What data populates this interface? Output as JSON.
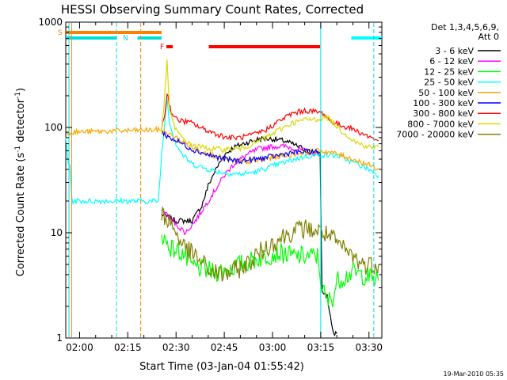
{
  "chart_data": {
    "type": "line",
    "title": "HESSI Observing Summary Count Rates, Corrected",
    "xlabel": "Start Time (03-Jan-04 01:55:42)",
    "ylabel_main": "Corrected Count Rate (s",
    "ylabel_sup1": "-1",
    "ylabel_mid": " detector",
    "ylabel_sup2": "-1",
    "ylabel_end": ")",
    "yscale": "log",
    "ylim": [
      1,
      1000
    ],
    "xlim_min": [
      115.7,
      214.0
    ],
    "y_ticks": [
      {
        "value": 1,
        "label": "1"
      },
      {
        "value": 10,
        "label": "10"
      },
      {
        "value": 100,
        "label": "100"
      },
      {
        "value": 1000,
        "label": "1000"
      }
    ],
    "x_ticks": [
      {
        "value": 120,
        "label": "02:00"
      },
      {
        "value": 135,
        "label": "02:15"
      },
      {
        "value": 150,
        "label": "02:30"
      },
      {
        "value": 165,
        "label": "02:45"
      },
      {
        "value": 180,
        "label": "03:00"
      },
      {
        "value": 195,
        "label": "03:15"
      },
      {
        "value": 210,
        "label": "03:30"
      }
    ],
    "legend": {
      "placement": "right",
      "header1": "Det 1,3,4,5,6,9,",
      "header2": "Att 0"
    },
    "series": [
      {
        "name": "3 - 6 keV",
        "color": "#000000",
        "points": [
          [
            145.5,
            15
          ],
          [
            150,
            13
          ],
          [
            155,
            13
          ],
          [
            158,
            18
          ],
          [
            160,
            28
          ],
          [
            162,
            38
          ],
          [
            165,
            55
          ],
          [
            168,
            65
          ],
          [
            172,
            72
          ],
          [
            176,
            78
          ],
          [
            180,
            78
          ],
          [
            184,
            74
          ],
          [
            188,
            66
          ],
          [
            191,
            60
          ],
          [
            193,
            58
          ],
          [
            194.8,
            55
          ],
          [
            195.4,
            2.8
          ],
          [
            197,
            2.5
          ],
          [
            198,
            1.6
          ],
          [
            199,
            1.05
          ],
          [
            200,
            1.1
          ]
        ]
      },
      {
        "name": "6 - 12 keV",
        "color": "#ff00ff",
        "points": [
          [
            145.5,
            17
          ],
          [
            148,
            14
          ],
          [
            150,
            12
          ],
          [
            153,
            10
          ],
          [
            156,
            13
          ],
          [
            159,
            18
          ],
          [
            162,
            25
          ],
          [
            165,
            35
          ],
          [
            168,
            45
          ],
          [
            172,
            55
          ],
          [
            176,
            63
          ],
          [
            180,
            66
          ],
          [
            184,
            66
          ],
          [
            188,
            62
          ],
          [
            192,
            58
          ],
          [
            194.8,
            55
          ]
        ]
      },
      {
        "name": "12 - 25 keV",
        "color": "#00ff00",
        "points": [
          [
            145.5,
            10
          ],
          [
            147,
            8
          ],
          [
            149,
            7
          ],
          [
            152,
            6.5
          ],
          [
            154,
            5
          ],
          [
            158,
            4.5
          ],
          [
            162,
            4.2
          ],
          [
            166,
            4.5
          ],
          [
            170,
            5
          ],
          [
            174,
            5.5
          ],
          [
            178,
            6
          ],
          [
            182,
            6.5
          ],
          [
            186,
            6
          ],
          [
            190,
            6
          ],
          [
            194,
            6
          ],
          [
            195.4,
            3
          ],
          [
            197,
            2.2
          ],
          [
            199,
            2.5
          ],
          [
            200,
            3.5
          ],
          [
            205,
            4.2
          ],
          [
            210,
            3.8
          ],
          [
            213,
            3.5
          ]
        ]
      },
      {
        "name": "25 - 50 keV",
        "color": "#00ffff",
        "points": [
          [
            115.7,
            80
          ],
          [
            116.5,
            45
          ],
          [
            117,
            45
          ],
          [
            117.6,
            20
          ],
          [
            144.5,
            20
          ],
          [
            145.5,
            55
          ],
          [
            146.5,
            110
          ],
          [
            147.2,
            200
          ],
          [
            148,
            110
          ],
          [
            150,
            70
          ],
          [
            152,
            55
          ],
          [
            155,
            45
          ],
          [
            160,
            40
          ],
          [
            165,
            37
          ],
          [
            170,
            36
          ],
          [
            175,
            38
          ],
          [
            180,
            43
          ],
          [
            185,
            48
          ],
          [
            190,
            53
          ],
          [
            195,
            55
          ],
          [
            200,
            54
          ],
          [
            205,
            47
          ],
          [
            210,
            40
          ],
          [
            213,
            35
          ]
        ]
      },
      {
        "name": "50 - 100 keV",
        "color": "#ffa500",
        "points": [
          [
            115.7,
            90
          ],
          [
            145.5,
            95
          ],
          [
            148,
            85
          ],
          [
            150,
            80
          ],
          [
            152,
            73
          ],
          [
            155,
            65
          ],
          [
            160,
            57
          ],
          [
            165,
            50
          ],
          [
            170,
            47
          ],
          [
            175,
            48
          ],
          [
            180,
            52
          ],
          [
            185,
            55
          ],
          [
            190,
            58
          ],
          [
            195,
            60
          ],
          [
            198,
            58
          ],
          [
            201,
            55
          ],
          [
            205,
            50
          ],
          [
            210,
            44
          ],
          [
            213,
            40
          ]
        ]
      },
      {
        "name": "100 - 300 keV",
        "color": "#0000ff",
        "points": [
          [
            145.5,
            90
          ],
          [
            148,
            80
          ],
          [
            152,
            70
          ],
          [
            155,
            62
          ],
          [
            160,
            55
          ],
          [
            165,
            50
          ],
          [
            170,
            48
          ],
          [
            175,
            50
          ],
          [
            180,
            53
          ],
          [
            185,
            57
          ],
          [
            190,
            59
          ],
          [
            194.8,
            58
          ]
        ]
      },
      {
        "name": "300 - 800 keV",
        "color": "#ff0000",
        "points": [
          [
            145.5,
            100
          ],
          [
            146.5,
            130
          ],
          [
            147.2,
            215
          ],
          [
            148.5,
            140
          ],
          [
            150,
            120
          ],
          [
            152,
            115
          ],
          [
            155,
            110
          ],
          [
            158,
            98
          ],
          [
            162,
            88
          ],
          [
            166,
            80
          ],
          [
            170,
            80
          ],
          [
            174,
            85
          ],
          [
            178,
            95
          ],
          [
            182,
            115
          ],
          [
            186,
            135
          ],
          [
            190,
            145
          ],
          [
            194,
            140
          ],
          [
            196,
            135
          ],
          [
            198,
            115
          ],
          [
            201,
            105
          ],
          [
            204,
            100
          ],
          [
            207,
            90
          ],
          [
            210,
            82
          ],
          [
            213,
            75
          ]
        ]
      },
      {
        "name": "800 - 7000 keV",
        "color": "#d9d900",
        "points": [
          [
            145.5,
            90
          ],
          [
            146.5,
            200
          ],
          [
            147.2,
            420
          ],
          [
            148,
            150
          ],
          [
            149,
            110
          ],
          [
            151,
            85
          ],
          [
            154,
            70
          ],
          [
            158,
            65
          ],
          [
            162,
            62
          ],
          [
            166,
            62
          ],
          [
            170,
            63
          ],
          [
            174,
            70
          ],
          [
            178,
            80
          ],
          [
            182,
            95
          ],
          [
            186,
            110
          ],
          [
            190,
            118
          ],
          [
            194,
            120
          ],
          [
            197,
            125
          ],
          [
            199,
            110
          ],
          [
            202,
            90
          ],
          [
            206,
            72
          ],
          [
            210,
            65
          ],
          [
            213,
            65
          ]
        ]
      },
      {
        "name": "7000 - 20000 keV",
        "color": "#808000",
        "points": [
          [
            145.5,
            15
          ],
          [
            148,
            13
          ],
          [
            150,
            10
          ],
          [
            153,
            7
          ],
          [
            156,
            6
          ],
          [
            160,
            4.5
          ],
          [
            164,
            4
          ],
          [
            168,
            4.3
          ],
          [
            172,
            5
          ],
          [
            176,
            6.5
          ],
          [
            180,
            8
          ],
          [
            184,
            9.5
          ],
          [
            187,
            10.5
          ],
          [
            190,
            11
          ],
          [
            193,
            10.5
          ],
          [
            196,
            10
          ],
          [
            199,
            8.5
          ],
          [
            202,
            7
          ],
          [
            205,
            6
          ],
          [
            208,
            5
          ],
          [
            211,
            5
          ],
          [
            213,
            5
          ]
        ]
      }
    ],
    "state_bars": [
      {
        "label": "S",
        "color": "#ff8000",
        "start": 115.7,
        "end": 145.5
      },
      {
        "label": "N",
        "color": "#00dddd",
        "start": 115.7,
        "end": 131.5,
        "gap_end": 138.0
      },
      {
        "label": "F",
        "color": "#ff0000",
        "start": 147.0,
        "end": 149.0
      },
      {
        "label": "",
        "color": "#ff0000",
        "start": 160.2,
        "end": 194.8
      },
      {
        "label": "",
        "color": "#00ffff",
        "start": 204.5,
        "end": 214.0
      }
    ],
    "vlines": [
      {
        "x": 116.7,
        "color": "#00dddd",
        "dashed": false
      },
      {
        "x": 117.5,
        "color": "#ff8000",
        "dashed": false
      },
      {
        "x": 131.5,
        "color": "#00dddd",
        "dashed": true
      },
      {
        "x": 139.0,
        "color": "#ff8000",
        "dashed": true
      },
      {
        "x": 195.0,
        "color": "#00dddd",
        "dashed": false
      },
      {
        "x": 211.5,
        "color": "#00dddd",
        "dashed": true
      }
    ],
    "footer": "19-Mar-2010 05:35"
  }
}
